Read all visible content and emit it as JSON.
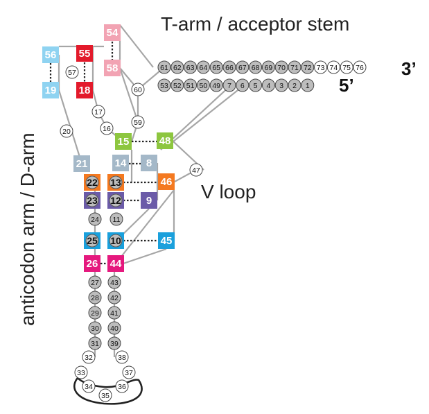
{
  "labels": {
    "t_arm": "T-arm / acceptor stem",
    "v_loop": "V loop",
    "anticodon": "anticodon arm / D-arm",
    "three_prime": "3’",
    "five_prime": "5’"
  },
  "colors": {
    "pink": "#f2a3b3",
    "red": "#e31a2b",
    "light_blue": "#8fd3f1",
    "green": "#8dc63f",
    "gray_blue": "#a4b8c8",
    "orange": "#f47920",
    "purple": "#6b5ba8",
    "cyan": "#1aa0dc",
    "magenta": "#e5197e",
    "gray_circle": "#bdbdbd",
    "line": "#a6a6a6"
  },
  "nucleotides": {
    "top_row": [
      "61",
      "62",
      "63",
      "64",
      "65",
      "66",
      "67",
      "68",
      "69",
      "70",
      "71",
      "72",
      "73",
      "74",
      "75",
      "76"
    ],
    "bottom_row": [
      "53",
      "52",
      "51",
      "50",
      "49",
      "7",
      "6",
      "5",
      "4",
      "3",
      "2",
      "1"
    ],
    "boxes": {
      "b54": "54",
      "b56": "56",
      "b55": "55",
      "b58": "58",
      "b19": "19",
      "b18": "18",
      "b15": "15",
      "b48": "48",
      "b21": "21",
      "b14": "14",
      "b8": "8",
      "b22": "22",
      "b13": "13",
      "b46": "46",
      "b23": "23",
      "b12": "12",
      "b9": "9",
      "b25": "25",
      "b10": "10",
      "b45": "45",
      "b26": "26",
      "b44": "44"
    },
    "circles": {
      "c57": "57",
      "c60": "60",
      "c17": "17",
      "c16": "16",
      "c59": "59",
      "c20": "20",
      "c47": "47",
      "c24": "24",
      "c11": "11",
      "c27": "27",
      "c28": "28",
      "c29": "29",
      "c30": "30",
      "c31": "31",
      "c43": "43",
      "c42": "42",
      "c41": "41",
      "c40": "40",
      "c39": "39",
      "c32": "32",
      "c33": "33",
      "c34": "34",
      "c35": "35",
      "c36": "36",
      "c37": "37",
      "c38": "38"
    }
  }
}
